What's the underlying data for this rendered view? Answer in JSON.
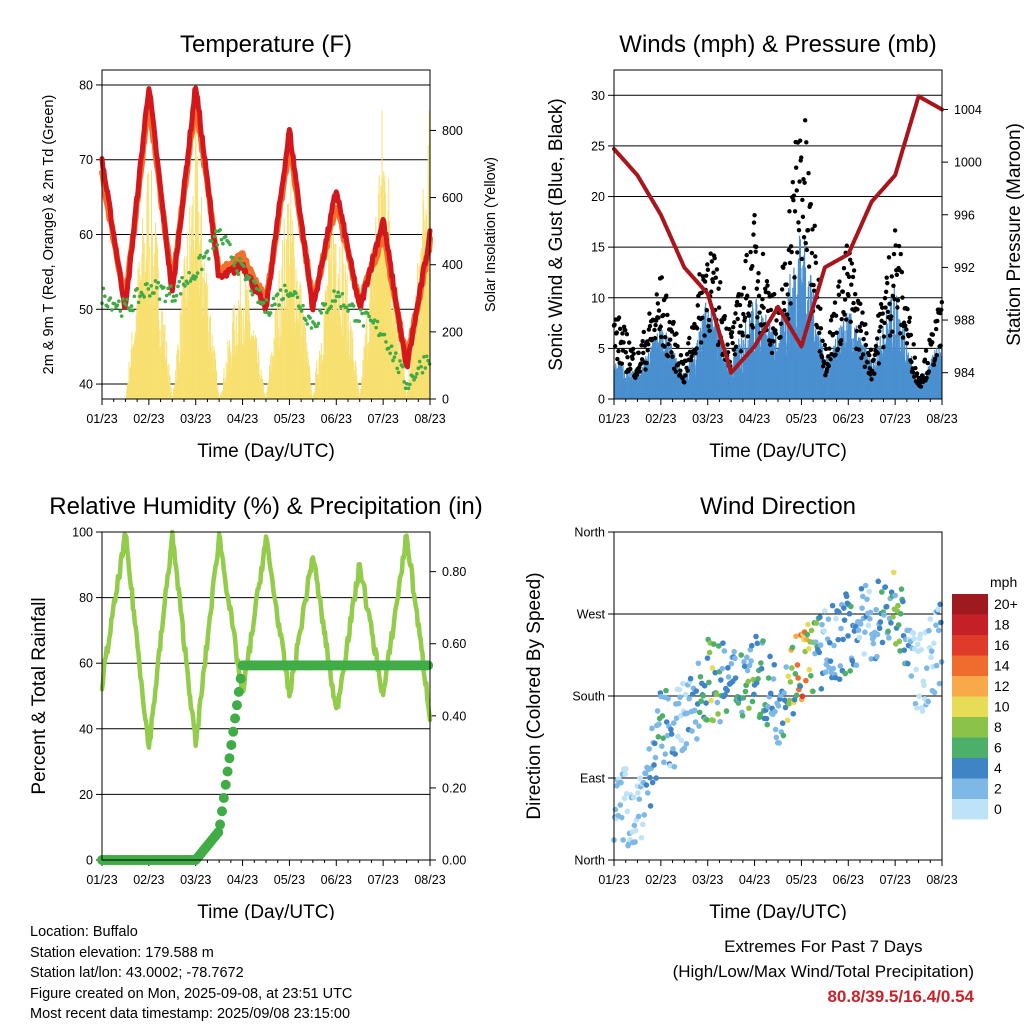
{
  "colors": {
    "t2m": "#d3181d",
    "t9m": "#f3702a",
    "td": "#40aa44",
    "solar": "#f8e071",
    "wind": "#4a90d0",
    "gust": "#000000",
    "pressure": "#a8151c",
    "rh": "#92cc4a",
    "precip": "#40ac46",
    "extremes": "#c8222a"
  },
  "x_ticks": [
    "01/23",
    "02/23",
    "03/23",
    "04/23",
    "05/23",
    "06/23",
    "07/23",
    "08/23"
  ],
  "charts": [
    {
      "id": "temperature",
      "title": "Temperature (F)",
      "xlabel": "Time (Day/UTC)",
      "ylabel_left": "2m & 9m T (Red, Orange) & 2m Td (Green)",
      "ylabel_right": "Solar Insolation (Yellow)",
      "yticks_left": [
        "40",
        "50",
        "60",
        "70",
        "80"
      ],
      "yticks_right": [
        "0",
        "200",
        "400",
        "600",
        "800"
      ]
    },
    {
      "id": "winds",
      "title": "Winds (mph) & Pressure (mb)",
      "xlabel": "Time (Day/UTC)",
      "ylabel_left": "Sonic Wind & Gust (Blue, Black)",
      "ylabel_right": "Station Pressure (Maroon)",
      "yticks_left": [
        "0",
        "5",
        "10",
        "15",
        "20",
        "25",
        "30"
      ],
      "yticks_right": [
        "984",
        "988",
        "992",
        "996",
        "1000",
        "1004"
      ]
    },
    {
      "id": "humidity",
      "title": "Relative Humidity (%) & Precipitation (in)",
      "xlabel": "Time (Day/UTC)",
      "ylabel_left": "Percent & Total Rainfall",
      "ylabel_right": "",
      "yticks_left": [
        "0",
        "20",
        "40",
        "60",
        "80",
        "100"
      ],
      "yticks_right": [
        "0.00",
        "0.20",
        "0.40",
        "0.60",
        "0.80"
      ]
    },
    {
      "id": "direction",
      "title": "Wind Direction",
      "xlabel": "Time (Day/UTC)",
      "ylabel_left": "Direction (Colored By Speed)",
      "ylabel_right": "",
      "yticks_left": [
        "North",
        "East",
        "South",
        "West",
        "North"
      ],
      "yticks_right": []
    }
  ],
  "legend": {
    "unit": "mph",
    "labels": [
      "20+",
      "18",
      "16",
      "14",
      "12",
      "10",
      "8",
      "6",
      "4",
      "2",
      "0"
    ],
    "colors": [
      "#9e1a1e",
      "#c52027",
      "#e03a2a",
      "#f06c2e",
      "#f9a94a",
      "#e7dc55",
      "#8bc34a",
      "#4caf6a",
      "#3f84c4",
      "#7db8e6",
      "#bfe3f6"
    ]
  },
  "info": {
    "location": "Location: Buffalo",
    "elevation": "Station elevation: 179.588 m",
    "latlon": "Station lat/lon: 43.0002; -78.7672",
    "created": "Figure created on Mon, 2025-09-08, at 23:51 UTC",
    "recent": "Most recent data timestamp: 2025/09/08 23:15:00"
  },
  "extremes": {
    "title": "Extremes For Past 7 Days",
    "subtitle": "(High/Low/Max Wind/Total Precipitation)",
    "values": "80.8/39.5/16.4/0.54"
  },
  "chart_data": [
    {
      "type": "line",
      "x": [
        1,
        1.5,
        2,
        2.5,
        3,
        3.5,
        4,
        4.5,
        5,
        5.5,
        6,
        6.5,
        7,
        7.5,
        8
      ],
      "series": [
        {
          "name": "2m T",
          "axis": "left",
          "values": [
            70,
            50,
            80,
            52,
            80,
            54,
            56,
            50,
            74,
            50,
            66,
            50,
            62,
            42,
            60
          ]
        },
        {
          "name": "9m T",
          "axis": "left",
          "values": [
            68,
            51,
            78,
            53,
            78,
            55,
            57,
            51,
            72,
            51,
            64,
            51,
            60,
            43,
            59
          ]
        },
        {
          "name": "2m Td",
          "axis": "left",
          "values": [
            52,
            50,
            53,
            52,
            55,
            60,
            55,
            50,
            53,
            48,
            52,
            49,
            47,
            40,
            44
          ]
        },
        {
          "name": "Solar Insolation",
          "axis": "right",
          "values": [
            0,
            0,
            770,
            0,
            830,
            0,
            460,
            0,
            720,
            0,
            700,
            0,
            940,
            0,
            900
          ]
        }
      ],
      "ylim_left": [
        38,
        82
      ],
      "ylim_right": [
        0,
        980
      ]
    },
    {
      "type": "line",
      "x": [
        1,
        1.5,
        2,
        2.5,
        3,
        3.5,
        4,
        4.5,
        5,
        5.5,
        6,
        6.5,
        7,
        7.5,
        8
      ],
      "series": [
        {
          "name": "Sonic Wind",
          "axis": "left",
          "values": [
            3,
            2,
            6,
            2,
            8,
            3,
            8,
            5,
            14,
            3,
            7,
            3,
            9,
            1,
            5
          ]
        },
        {
          "name": "Gust",
          "axis": "left",
          "values": [
            8,
            4,
            11,
            3,
            15,
            6,
            16,
            8,
            28,
            5,
            14,
            4,
            16,
            2,
            9
          ]
        },
        {
          "name": "Station Pressure",
          "axis": "right",
          "values": [
            1001,
            999,
            996,
            992,
            990,
            984,
            986,
            989,
            986,
            992,
            993,
            997,
            999,
            1005,
            1004
          ]
        }
      ],
      "ylim_left": [
        0,
        32.5
      ],
      "ylim_right": [
        982,
        1007
      ]
    },
    {
      "type": "line",
      "x": [
        1,
        1.5,
        2,
        2.5,
        3,
        3.5,
        4,
        4.5,
        5,
        5.5,
        6,
        6.5,
        7,
        7.5,
        8
      ],
      "series": [
        {
          "name": "Relative Humidity",
          "axis": "left",
          "values": [
            54,
            99,
            34,
            99,
            35,
            99,
            50,
            98,
            50,
            93,
            45,
            90,
            50,
            99,
            44
          ]
        },
        {
          "name": "Total Rainfall",
          "axis": "right",
          "values": [
            0,
            0,
            0,
            0,
            0,
            0.08,
            0.54,
            0.54,
            0.54,
            0.54,
            0.54,
            0.54,
            0.54,
            0.54,
            0.54
          ]
        }
      ],
      "ylim_left": [
        0,
        100
      ],
      "ylim_right": [
        0,
        0.91
      ]
    },
    {
      "type": "scatter",
      "x": [
        1,
        1.5,
        2,
        2.5,
        3,
        3.5,
        4,
        4.5,
        5,
        5.5,
        6,
        6.5,
        7,
        7.5,
        8
      ],
      "series": [
        {
          "name": "Wind Direction (deg)",
          "values": [
            60,
            55,
            140,
            150,
            200,
            190,
            210,
            170,
            220,
            230,
            250,
            260,
            280,
            200,
            240
          ]
        },
        {
          "name": "Wind Speed (mph)",
          "values": [
            3,
            2,
            6,
            2,
            9,
            4,
            8,
            4,
            14,
            3,
            6,
            3,
            8,
            1,
            4
          ]
        }
      ],
      "ylim": [
        0,
        360
      ]
    }
  ]
}
